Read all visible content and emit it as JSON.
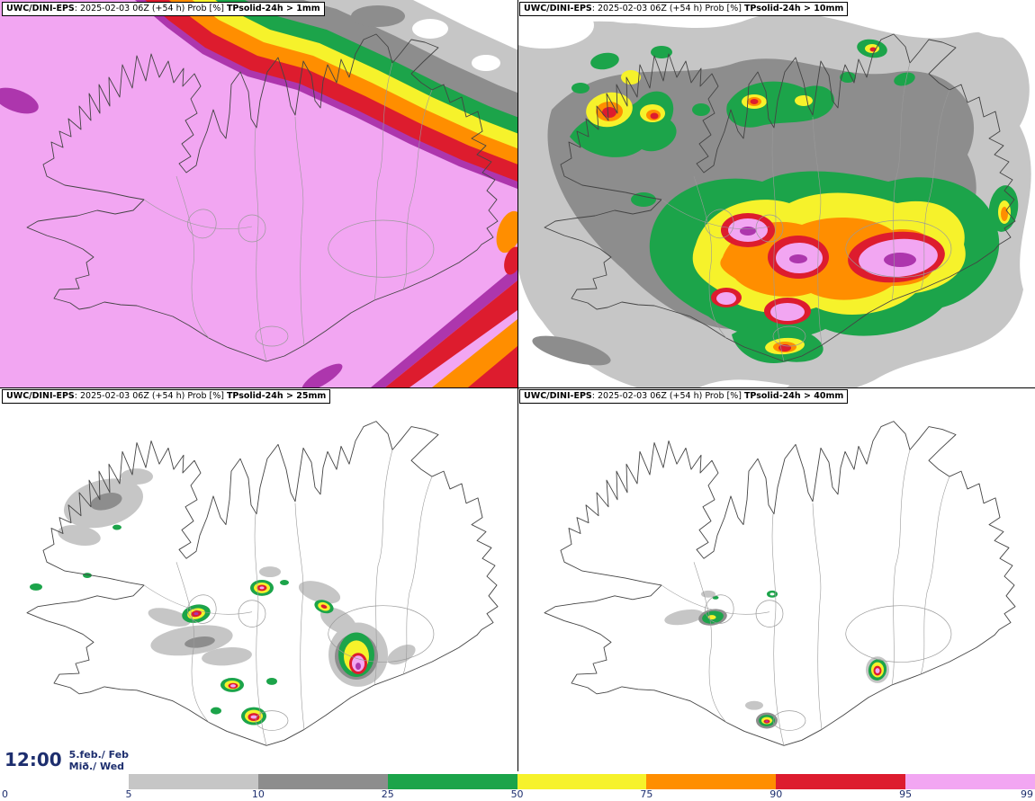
{
  "panels": [
    {
      "model": "UWC/DINI-EPS",
      "meta": ": 2025-02-03 06Z (+54 h) Prob [%] ",
      "threshold": "TPsolid-24h > 1mm"
    },
    {
      "model": "UWC/DINI-EPS",
      "meta": ": 2025-02-03 06Z (+54 h) Prob [%] ",
      "threshold": "TPsolid-24h > 10mm"
    },
    {
      "model": "UWC/DINI-EPS",
      "meta": ": 2025-02-03 06Z (+54 h) Prob [%] ",
      "threshold": "TPsolid-24h > 25mm"
    },
    {
      "model": "UWC/DINI-EPS",
      "meta": ": 2025-02-03 06Z (+54 h) Prob [%] ",
      "threshold": "TPsolid-24h > 40mm"
    }
  ],
  "footer": {
    "time": "12:00",
    "date": "5.feb./ Feb",
    "weekday": "Mið./ Wed"
  },
  "colorbar": {
    "tick_labels": [
      "0",
      "5",
      "10",
      "25",
      "50",
      "75",
      "90",
      "95",
      "99"
    ],
    "segments": [
      {
        "range": "5-10",
        "color_key": "grayLight"
      },
      {
        "range": "10-25",
        "color_key": "grayDark"
      },
      {
        "range": "25-50",
        "color_key": "green"
      },
      {
        "range": "50-75",
        "color_key": "yellow"
      },
      {
        "range": "75-90",
        "color_key": "orange"
      },
      {
        "range": "90-95",
        "color_key": "red"
      },
      {
        "range": "95-99",
        "color_key": "pink"
      }
    ]
  },
  "palette": {
    "white": "#ffffff",
    "grayLight": "#c6c6c6",
    "grayDark": "#8d8d8d",
    "green": "#1ca44a",
    "yellow": "#f6f22b",
    "orange": "#ff8e00",
    "red": "#dd1c2e",
    "pink": "#f2a6f2",
    "purple": "#ad36ad",
    "coastline": "#444444",
    "interiorLine": "#9a9a9a",
    "textNavy": "#1d2e6e"
  }
}
